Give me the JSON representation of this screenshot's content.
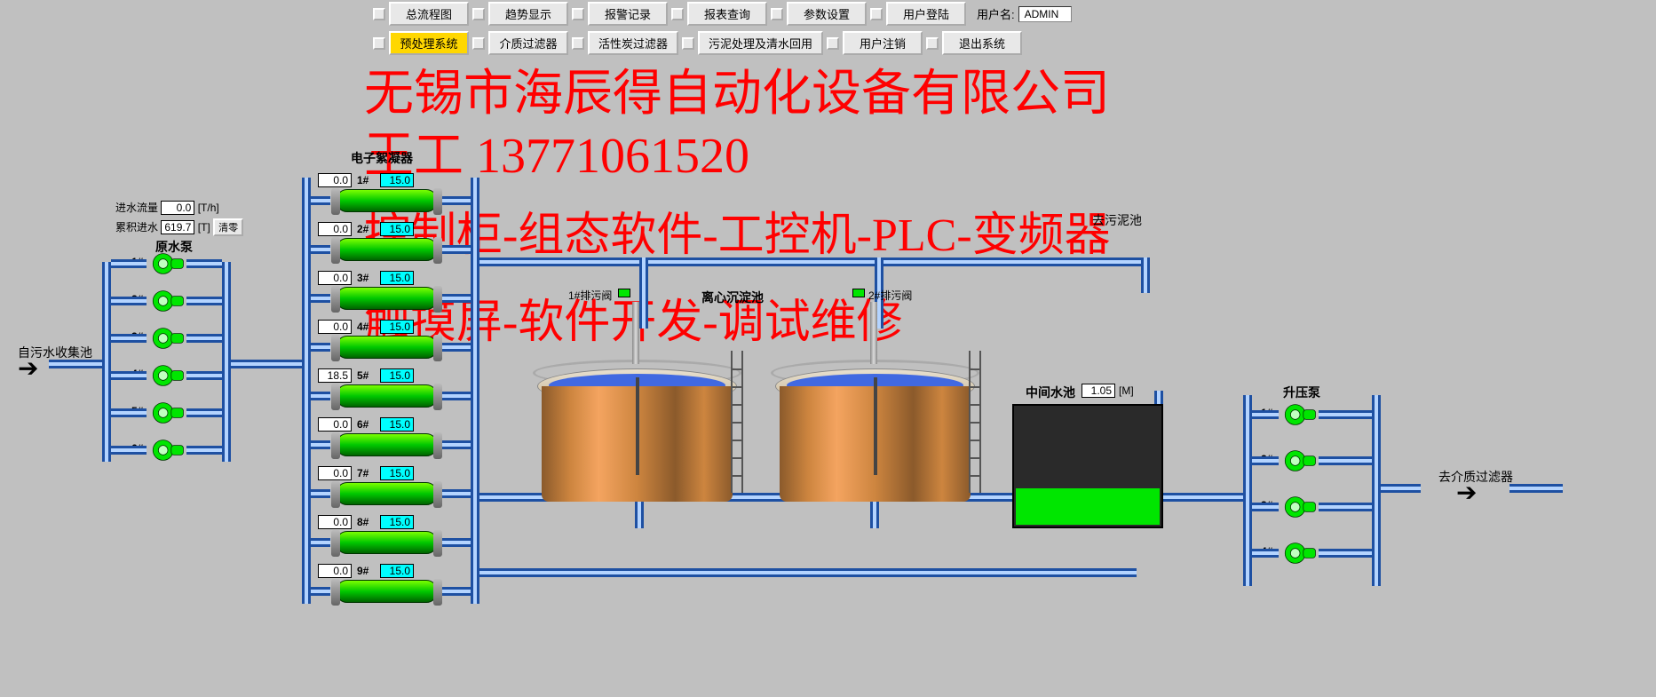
{
  "menu": {
    "row1": [
      "总流程图",
      "趋势显示",
      "报警记录",
      "报表查询",
      "参数设置",
      "用户登陆"
    ],
    "row2": [
      "预处理系统",
      "介质过滤器",
      "活性炭过滤器",
      "污泥处理及清水回用",
      "用户注销",
      "退出系统"
    ],
    "active_row2_index": 0,
    "user_label": "用户名:",
    "user_value": "ADMIN"
  },
  "overlay": {
    "line1": "无锡市海辰得自动化设备有限公司",
    "line2": "王工 13771061520",
    "line3": "控制柜-组态软件-工控机-PLC-变频器",
    "line4": "触摸屏-软件开发-调试维修"
  },
  "inflow": {
    "flow_label": "进水流量",
    "flow_value": "0.0",
    "flow_unit": "[T/h]",
    "cum_label": "累积进水",
    "cum_value": "619.7",
    "cum_unit": "[T]",
    "reset_btn": "清零"
  },
  "raw_pump": {
    "title": "原水泵",
    "ids": [
      "1#",
      "2#",
      "3#",
      "4#",
      "5#",
      "6#"
    ]
  },
  "source_label": "自污水收集池",
  "flocculator": {
    "title": "电子絮凝器",
    "rows": [
      {
        "id": "1#",
        "a": "0.0",
        "b": "15.0"
      },
      {
        "id": "2#",
        "a": "0.0",
        "b": "15.0"
      },
      {
        "id": "3#",
        "a": "0.0",
        "b": "15.0"
      },
      {
        "id": "4#",
        "a": "0.0",
        "b": "15.0"
      },
      {
        "id": "5#",
        "a": "18.5",
        "b": "15.0"
      },
      {
        "id": "6#",
        "a": "0.0",
        "b": "15.0"
      },
      {
        "id": "7#",
        "a": "0.0",
        "b": "15.0"
      },
      {
        "id": "8#",
        "a": "0.0",
        "b": "15.0"
      },
      {
        "id": "9#",
        "a": "0.0",
        "b": "15.0"
      }
    ]
  },
  "sed_tank": {
    "title": "离心沉淀池",
    "valve1": "1#排污阀",
    "valve2": "2#排污阀"
  },
  "sludge_tank": "去污泥池",
  "mid_pool": {
    "title": "中间水池",
    "level": "1.05",
    "unit": "[M]",
    "fill_pct": 30
  },
  "boost_pump": {
    "title": "升压泵",
    "ids": [
      "1#",
      "2#",
      "3#",
      "4#"
    ]
  },
  "outlet_label": "去介质过滤器",
  "colors": {
    "bg": "#c0c0c0",
    "pipe": "#1e50a2",
    "pump_on": "#00e600",
    "overlay": "#ff0000",
    "cyan": "#00ffff",
    "tank": "#cd853f"
  }
}
